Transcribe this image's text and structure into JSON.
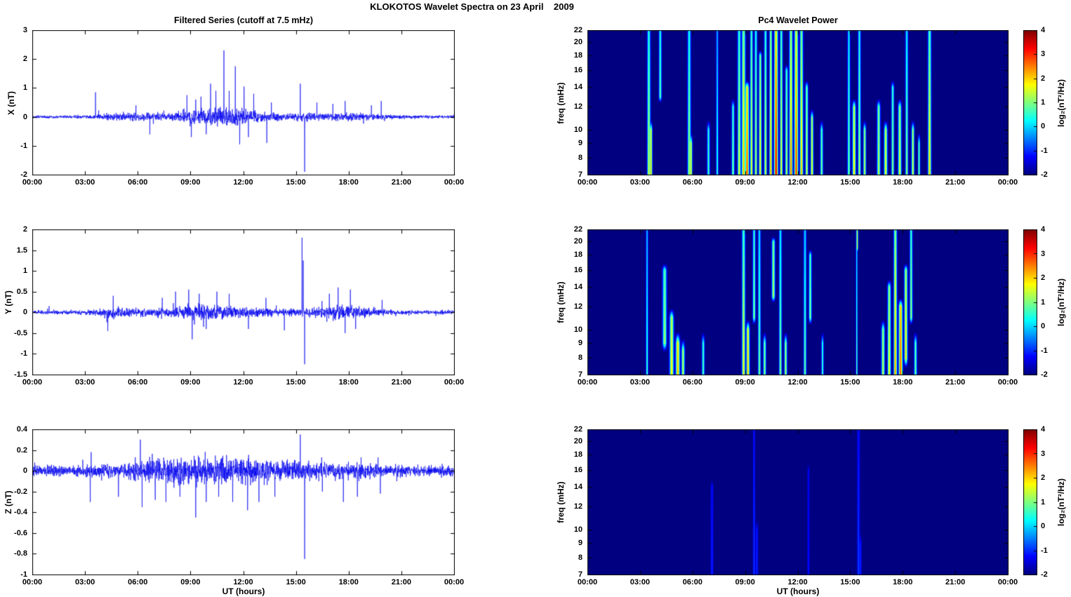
{
  "figure_title": "KLOKOTOS Wavelet Spectra on 23 April    2009",
  "colors": {
    "line": "#0000EE",
    "spectrogram_background": "#00008F",
    "axis": "#000000",
    "page_background": "#FFFFFF"
  },
  "time_axis": {
    "label": "UT (hours)",
    "ticks": [
      "00:00",
      "03:00",
      "06:00",
      "09:00",
      "12:00",
      "15:00",
      "18:00",
      "21:00",
      "00:00"
    ],
    "range_hours": [
      0,
      24
    ]
  },
  "colorbar": {
    "label": "log₂(nT²/Hz)",
    "ticks": [
      4,
      3,
      2,
      1,
      0,
      -1,
      -2
    ],
    "range": [
      -2,
      4
    ]
  },
  "chart_data": [
    {
      "id": "x-filtered-series",
      "type": "line",
      "title": "Filtered Series (cutoff at 7.5 mHz)",
      "ylabel": "X (nT)",
      "ylim": [
        -2,
        3
      ],
      "yticks": [
        -2,
        -1,
        0,
        1,
        2,
        3
      ],
      "x_range_hours": [
        0,
        24
      ],
      "noise_envelope_nT": [
        {
          "t": 0,
          "a": 0.035
        },
        {
          "t": 3,
          "a": 0.04
        },
        {
          "t": 4,
          "a": 0.07
        },
        {
          "t": 5,
          "a": 0.09
        },
        {
          "t": 8,
          "a": 0.1
        },
        {
          "t": 9,
          "a": 0.17
        },
        {
          "t": 10.5,
          "a": 0.22
        },
        {
          "t": 12,
          "a": 0.2
        },
        {
          "t": 13,
          "a": 0.13
        },
        {
          "t": 14.5,
          "a": 0.08
        },
        {
          "t": 15.5,
          "a": 0.11
        },
        {
          "t": 17,
          "a": 0.1
        },
        {
          "t": 19,
          "a": 0.09
        },
        {
          "t": 20.5,
          "a": 0.05
        },
        {
          "t": 24,
          "a": 0.035
        }
      ],
      "major_spikes_nT": [
        {
          "t": 3.6,
          "v": 0.85
        },
        {
          "t": 5.9,
          "v": 0.4
        },
        {
          "t": 8.8,
          "v": 0.75
        },
        {
          "t": 9.05,
          "v": -0.7
        },
        {
          "t": 9.3,
          "v": 0.6
        },
        {
          "t": 9.6,
          "v": 0.7
        },
        {
          "t": 9.9,
          "v": -0.6
        },
        {
          "t": 10.15,
          "v": 1.15
        },
        {
          "t": 10.45,
          "v": 0.9
        },
        {
          "t": 10.9,
          "v": 2.3
        },
        {
          "t": 11.2,
          "v": 0.9
        },
        {
          "t": 11.55,
          "v": 1.75
        },
        {
          "t": 11.8,
          "v": -0.95
        },
        {
          "t": 12.05,
          "v": 1.05
        },
        {
          "t": 12.3,
          "v": -0.7
        },
        {
          "t": 12.6,
          "v": 0.8
        },
        {
          "t": 13.35,
          "v": -0.9
        },
        {
          "t": 13.6,
          "v": 0.5
        },
        {
          "t": 15.25,
          "v": 1.15
        },
        {
          "t": 15.5,
          "v": -1.9
        },
        {
          "t": 16.2,
          "v": 0.5
        },
        {
          "t": 17.1,
          "v": 0.45
        },
        {
          "t": 17.8,
          "v": 0.55
        },
        {
          "t": 19.3,
          "v": 0.4
        },
        {
          "t": 19.85,
          "v": 0.55
        }
      ]
    },
    {
      "id": "y-filtered-series",
      "type": "line",
      "title": "",
      "ylabel": "Y (nT)",
      "ylim": [
        -1.5,
        2
      ],
      "yticks": [
        -1.5,
        -1,
        -0.5,
        0,
        0.5,
        1,
        1.5,
        2
      ],
      "x_range_hours": [
        0,
        24
      ],
      "noise_envelope_nT": [
        {
          "t": 0,
          "a": 0.03
        },
        {
          "t": 3.5,
          "a": 0.04
        },
        {
          "t": 4.2,
          "a": 0.1
        },
        {
          "t": 5.5,
          "a": 0.09
        },
        {
          "t": 6.5,
          "a": 0.06
        },
        {
          "t": 8,
          "a": 0.09
        },
        {
          "t": 9,
          "a": 0.13
        },
        {
          "t": 11,
          "a": 0.1
        },
        {
          "t": 13,
          "a": 0.08
        },
        {
          "t": 14.5,
          "a": 0.06
        },
        {
          "t": 16,
          "a": 0.08
        },
        {
          "t": 17.5,
          "a": 0.12
        },
        {
          "t": 18.5,
          "a": 0.1
        },
        {
          "t": 19.5,
          "a": 0.06
        },
        {
          "t": 21,
          "a": 0.04
        },
        {
          "t": 24,
          "a": 0.03
        }
      ],
      "major_spikes_nT": [
        {
          "t": 4.3,
          "v": -0.45
        },
        {
          "t": 4.6,
          "v": 0.4
        },
        {
          "t": 7.4,
          "v": 0.35
        },
        {
          "t": 8.15,
          "v": 0.5
        },
        {
          "t": 8.9,
          "v": 0.55
        },
        {
          "t": 9.1,
          "v": -0.65
        },
        {
          "t": 9.5,
          "v": 0.45
        },
        {
          "t": 9.9,
          "v": -0.4
        },
        {
          "t": 10.5,
          "v": 0.5
        },
        {
          "t": 11.2,
          "v": 0.45
        },
        {
          "t": 12.3,
          "v": -0.4
        },
        {
          "t": 13.3,
          "v": 0.35
        },
        {
          "t": 15.35,
          "v": 1.8
        },
        {
          "t": 15.42,
          "v": 1.25
        },
        {
          "t": 15.5,
          "v": -1.25
        },
        {
          "t": 16.9,
          "v": 0.45
        },
        {
          "t": 17.4,
          "v": 0.6
        },
        {
          "t": 17.8,
          "v": -0.5
        },
        {
          "t": 18.1,
          "v": 0.55
        },
        {
          "t": 18.4,
          "v": -0.4
        },
        {
          "t": 19.9,
          "v": 0.3
        }
      ]
    },
    {
      "id": "z-filtered-series",
      "type": "line",
      "title": "",
      "ylabel": "Z (nT)",
      "ylim": [
        -1,
        0.4
      ],
      "yticks": [
        -1,
        -0.8,
        -0.6,
        -0.4,
        -0.2,
        0,
        0.2,
        0.4
      ],
      "x_range_hours": [
        0,
        24
      ],
      "noise_envelope_nT": [
        {
          "t": 0,
          "a": 0.035
        },
        {
          "t": 3,
          "a": 0.04
        },
        {
          "t": 5,
          "a": 0.05
        },
        {
          "t": 6,
          "a": 0.07
        },
        {
          "t": 7,
          "a": 0.08
        },
        {
          "t": 9,
          "a": 0.09
        },
        {
          "t": 12,
          "a": 0.09
        },
        {
          "t": 14,
          "a": 0.07
        },
        {
          "t": 16,
          "a": 0.06
        },
        {
          "t": 19.5,
          "a": 0.05
        },
        {
          "t": 21,
          "a": 0.04
        },
        {
          "t": 24,
          "a": 0.035
        }
      ],
      "major_spikes_nT": [
        {
          "t": 3.3,
          "v": -0.3
        },
        {
          "t": 3.35,
          "v": 0.18
        },
        {
          "t": 4.9,
          "v": -0.25
        },
        {
          "t": 6.15,
          "v": 0.3
        },
        {
          "t": 6.25,
          "v": -0.35
        },
        {
          "t": 7.0,
          "v": -0.28
        },
        {
          "t": 7.6,
          "v": -0.3
        },
        {
          "t": 8.4,
          "v": -0.25
        },
        {
          "t": 9.3,
          "v": -0.45
        },
        {
          "t": 9.9,
          "v": -0.3
        },
        {
          "t": 10.6,
          "v": -0.25
        },
        {
          "t": 11.4,
          "v": -0.3
        },
        {
          "t": 12.25,
          "v": -0.38
        },
        {
          "t": 12.9,
          "v": -0.3
        },
        {
          "t": 13.8,
          "v": -0.25
        },
        {
          "t": 15.25,
          "v": 0.35
        },
        {
          "t": 15.5,
          "v": -0.85
        },
        {
          "t": 16.5,
          "v": -0.2
        },
        {
          "t": 17.7,
          "v": -0.3
        },
        {
          "t": 18.5,
          "v": -0.25
        },
        {
          "t": 19.8,
          "v": -0.22
        }
      ]
    },
    {
      "id": "x-pc4-wavelet-power",
      "type": "heatmap",
      "title": "Pc4 Wavelet Power",
      "ylabel": "freq (mHz)",
      "freq_ticks_mHz": [
        22,
        20,
        18,
        16,
        14,
        12,
        10,
        9,
        8,
        7
      ],
      "flim_mHz": [
        7,
        22
      ],
      "zlim_log2": [
        -2,
        4
      ],
      "background_power_log2": -2,
      "power_events": [
        {
          "t": 3.5,
          "f1": 7,
          "f2": 22.5,
          "p": 1.6,
          "w": 0.12
        },
        {
          "t": 3.62,
          "f1": 7,
          "f2": 10,
          "p": 2.1,
          "w": 0.1
        },
        {
          "t": 4.15,
          "f1": 13,
          "f2": 22.5,
          "p": 0.9,
          "w": 0.1
        },
        {
          "t": 5.8,
          "f1": 7,
          "f2": 22.5,
          "p": 1.4,
          "w": 0.12
        },
        {
          "t": 5.9,
          "f1": 7,
          "f2": 9,
          "p": 1.9,
          "w": 0.1
        },
        {
          "t": 6.9,
          "f1": 7,
          "f2": 10,
          "p": 0.8,
          "w": 0.1
        },
        {
          "t": 7.4,
          "f1": 7,
          "f2": 22.5,
          "p": 0.7,
          "w": 0.08
        },
        {
          "t": 8.3,
          "f1": 7,
          "f2": 12,
          "p": 1.1,
          "w": 0.1
        },
        {
          "t": 8.65,
          "f1": 7,
          "f2": 22.5,
          "p": 1.7,
          "w": 0.12
        },
        {
          "t": 8.9,
          "f1": 7,
          "f2": 22.5,
          "p": 2.3,
          "w": 0.14
        },
        {
          "t": 9.1,
          "f1": 7,
          "f2": 14,
          "p": 2.9,
          "w": 0.14
        },
        {
          "t": 9.35,
          "f1": 7,
          "f2": 22.5,
          "p": 1.9,
          "w": 0.1
        },
        {
          "t": 9.6,
          "f1": 7,
          "f2": 22.5,
          "p": 1.5,
          "w": 0.1
        },
        {
          "t": 9.85,
          "f1": 7,
          "f2": 18,
          "p": 2.1,
          "w": 0.1
        },
        {
          "t": 10.15,
          "f1": 7,
          "f2": 22.5,
          "p": 1.7,
          "w": 0.1
        },
        {
          "t": 10.45,
          "f1": 7,
          "f2": 22.5,
          "p": 2.5,
          "w": 0.1
        },
        {
          "t": 10.75,
          "f1": 7,
          "f2": 22.5,
          "p": 3.6,
          "w": 0.14
        },
        {
          "t": 11.05,
          "f1": 7,
          "f2": 22.5,
          "p": 1.9,
          "w": 0.1
        },
        {
          "t": 11.35,
          "f1": 7,
          "f2": 16,
          "p": 1.5,
          "w": 0.1
        },
        {
          "t": 11.6,
          "f1": 7,
          "f2": 22.5,
          "p": 2.7,
          "w": 0.12
        },
        {
          "t": 11.9,
          "f1": 7,
          "f2": 22.5,
          "p": 3.1,
          "w": 0.14
        },
        {
          "t": 12.2,
          "f1": 7,
          "f2": 22.5,
          "p": 2.3,
          "w": 0.12
        },
        {
          "t": 12.5,
          "f1": 7,
          "f2": 14,
          "p": 1.7,
          "w": 0.1
        },
        {
          "t": 12.8,
          "f1": 7,
          "f2": 11,
          "p": 1.9,
          "w": 0.1
        },
        {
          "t": 13.35,
          "f1": 7,
          "f2": 10,
          "p": 1.1,
          "w": 0.1
        },
        {
          "t": 14.9,
          "f1": 7,
          "f2": 22.5,
          "p": 1.1,
          "w": 0.1
        },
        {
          "t": 15.2,
          "f1": 7,
          "f2": 12,
          "p": 2.1,
          "w": 0.12
        },
        {
          "t": 15.5,
          "f1": 7,
          "f2": 22.5,
          "p": 1.5,
          "w": 0.1
        },
        {
          "t": 15.8,
          "f1": 7,
          "f2": 10,
          "p": 1.5,
          "w": 0.1
        },
        {
          "t": 16.6,
          "f1": 7,
          "f2": 12,
          "p": 1.5,
          "w": 0.12
        },
        {
          "t": 17.0,
          "f1": 7,
          "f2": 10,
          "p": 1.9,
          "w": 0.12
        },
        {
          "t": 17.4,
          "f1": 7,
          "f2": 14,
          "p": 1.2,
          "w": 0.1
        },
        {
          "t": 17.8,
          "f1": 7,
          "f2": 12,
          "p": 1.7,
          "w": 0.12
        },
        {
          "t": 18.2,
          "f1": 7,
          "f2": 22.5,
          "p": 1.2,
          "w": 0.1
        },
        {
          "t": 18.55,
          "f1": 7,
          "f2": 10,
          "p": 1.7,
          "w": 0.1
        },
        {
          "t": 18.9,
          "f1": 7,
          "f2": 9,
          "p": 1.1,
          "w": 0.08
        },
        {
          "t": 19.5,
          "f1": 7,
          "f2": 22.5,
          "p": 2.1,
          "w": 0.12
        }
      ]
    },
    {
      "id": "y-pc4-wavelet-power",
      "type": "heatmap",
      "title": "",
      "ylabel": "freq (mHz)",
      "freq_ticks_mHz": [
        22,
        20,
        18,
        16,
        14,
        12,
        10,
        9,
        8,
        7
      ],
      "flim_mHz": [
        7,
        22
      ],
      "zlim_log2": [
        -2,
        4
      ],
      "background_power_log2": -2,
      "power_events": [
        {
          "t": 3.4,
          "f1": 7,
          "f2": 22.5,
          "p": 0.8,
          "w": 0.08
        },
        {
          "t": 4.4,
          "f1": 9,
          "f2": 16,
          "p": 1.3,
          "w": 0.15
        },
        {
          "t": 4.8,
          "f1": 7,
          "f2": 11,
          "p": 1.9,
          "w": 0.15
        },
        {
          "t": 5.15,
          "f1": 7,
          "f2": 9,
          "p": 2.3,
          "w": 0.15
        },
        {
          "t": 5.45,
          "f1": 7,
          "f2": 8.5,
          "p": 1.5,
          "w": 0.12
        },
        {
          "t": 6.6,
          "f1": 7,
          "f2": 9,
          "p": 0.8,
          "w": 0.1
        },
        {
          "t": 8.9,
          "f1": 7,
          "f2": 22.5,
          "p": 1.9,
          "w": 0.12
        },
        {
          "t": 9.15,
          "f1": 7,
          "f2": 10,
          "p": 2.3,
          "w": 0.12
        },
        {
          "t": 9.5,
          "f1": 11,
          "f2": 22.5,
          "p": 1.2,
          "w": 0.1
        },
        {
          "t": 9.8,
          "f1": 7,
          "f2": 22.5,
          "p": 1.1,
          "w": 0.1
        },
        {
          "t": 10.1,
          "f1": 7,
          "f2": 9,
          "p": 1.3,
          "w": 0.1
        },
        {
          "t": 10.6,
          "f1": 13,
          "f2": 20,
          "p": 1.4,
          "w": 0.12
        },
        {
          "t": 11.0,
          "f1": 7,
          "f2": 22.5,
          "p": 1.2,
          "w": 0.1
        },
        {
          "t": 11.3,
          "f1": 7,
          "f2": 9,
          "p": 1.5,
          "w": 0.1
        },
        {
          "t": 12.4,
          "f1": 7,
          "f2": 22.5,
          "p": 1.0,
          "w": 0.1
        },
        {
          "t": 12.7,
          "f1": 11,
          "f2": 18,
          "p": 1.2,
          "w": 0.1
        },
        {
          "t": 13.4,
          "f1": 7,
          "f2": 9,
          "p": 0.8,
          "w": 0.08
        },
        {
          "t": 15.35,
          "f1": 7,
          "f2": 22.5,
          "p": 0.9,
          "w": 0.06
        },
        {
          "t": 15.38,
          "f1": 19,
          "f2": 22.5,
          "p": 1.7,
          "w": 0.06
        },
        {
          "t": 16.85,
          "f1": 7,
          "f2": 10,
          "p": 1.5,
          "w": 0.12
        },
        {
          "t": 17.2,
          "f1": 7,
          "f2": 14,
          "p": 1.9,
          "w": 0.12
        },
        {
          "t": 17.55,
          "f1": 7,
          "f2": 22.5,
          "p": 2.5,
          "w": 0.12
        },
        {
          "t": 17.85,
          "f1": 7,
          "f2": 12,
          "p": 2.9,
          "w": 0.14
        },
        {
          "t": 18.15,
          "f1": 8,
          "f2": 16,
          "p": 2.1,
          "w": 0.12
        },
        {
          "t": 18.45,
          "f1": 11,
          "f2": 22.5,
          "p": 1.3,
          "w": 0.1
        },
        {
          "t": 18.7,
          "f1": 7,
          "f2": 9,
          "p": 1.1,
          "w": 0.1
        }
      ]
    },
    {
      "id": "z-pc4-wavelet-power",
      "type": "heatmap",
      "title": "",
      "ylabel": "freq (mHz)",
      "freq_ticks_mHz": [
        22,
        20,
        18,
        16,
        14,
        12,
        10,
        9,
        8,
        7
      ],
      "flim_mHz": [
        7,
        22
      ],
      "zlim_log2": [
        -2,
        4
      ],
      "background_power_log2": -2,
      "power_events": [
        {
          "t": 7.1,
          "f1": 7,
          "f2": 14,
          "p": -1.0,
          "w": 0.1
        },
        {
          "t": 9.5,
          "f1": 7,
          "f2": 22.5,
          "p": -0.8,
          "w": 0.08
        },
        {
          "t": 9.65,
          "f1": 7,
          "f2": 10,
          "p": -1.0,
          "w": 0.1
        },
        {
          "t": 12.6,
          "f1": 7,
          "f2": 16,
          "p": -1.1,
          "w": 0.08
        },
        {
          "t": 15.45,
          "f1": 7,
          "f2": 22.5,
          "p": -0.8,
          "w": 0.1
        },
        {
          "t": 15.55,
          "f1": 7,
          "f2": 9,
          "p": -1.0,
          "w": 0.1
        }
      ]
    }
  ]
}
